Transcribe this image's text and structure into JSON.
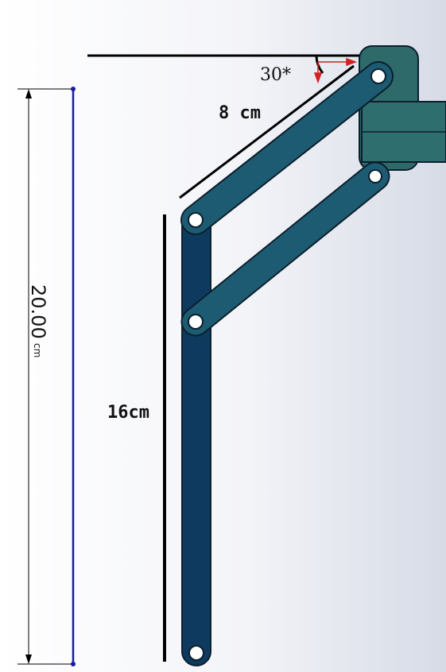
{
  "labels": {
    "angle": "30*",
    "top_link_length": "8 cm",
    "vertical_link_length": "16cm",
    "overall_height_value": "20.00",
    "overall_height_unit": "cm"
  },
  "colors": {
    "link": "#1d5b72",
    "link_vertical": "#0f3a5f",
    "link_stroke": "#0b1f2c",
    "mount": "#2e6a6a",
    "dimension_line": "#1a1aa6",
    "angle_arrow": "#d42020",
    "annotation_line": "#000000"
  }
}
